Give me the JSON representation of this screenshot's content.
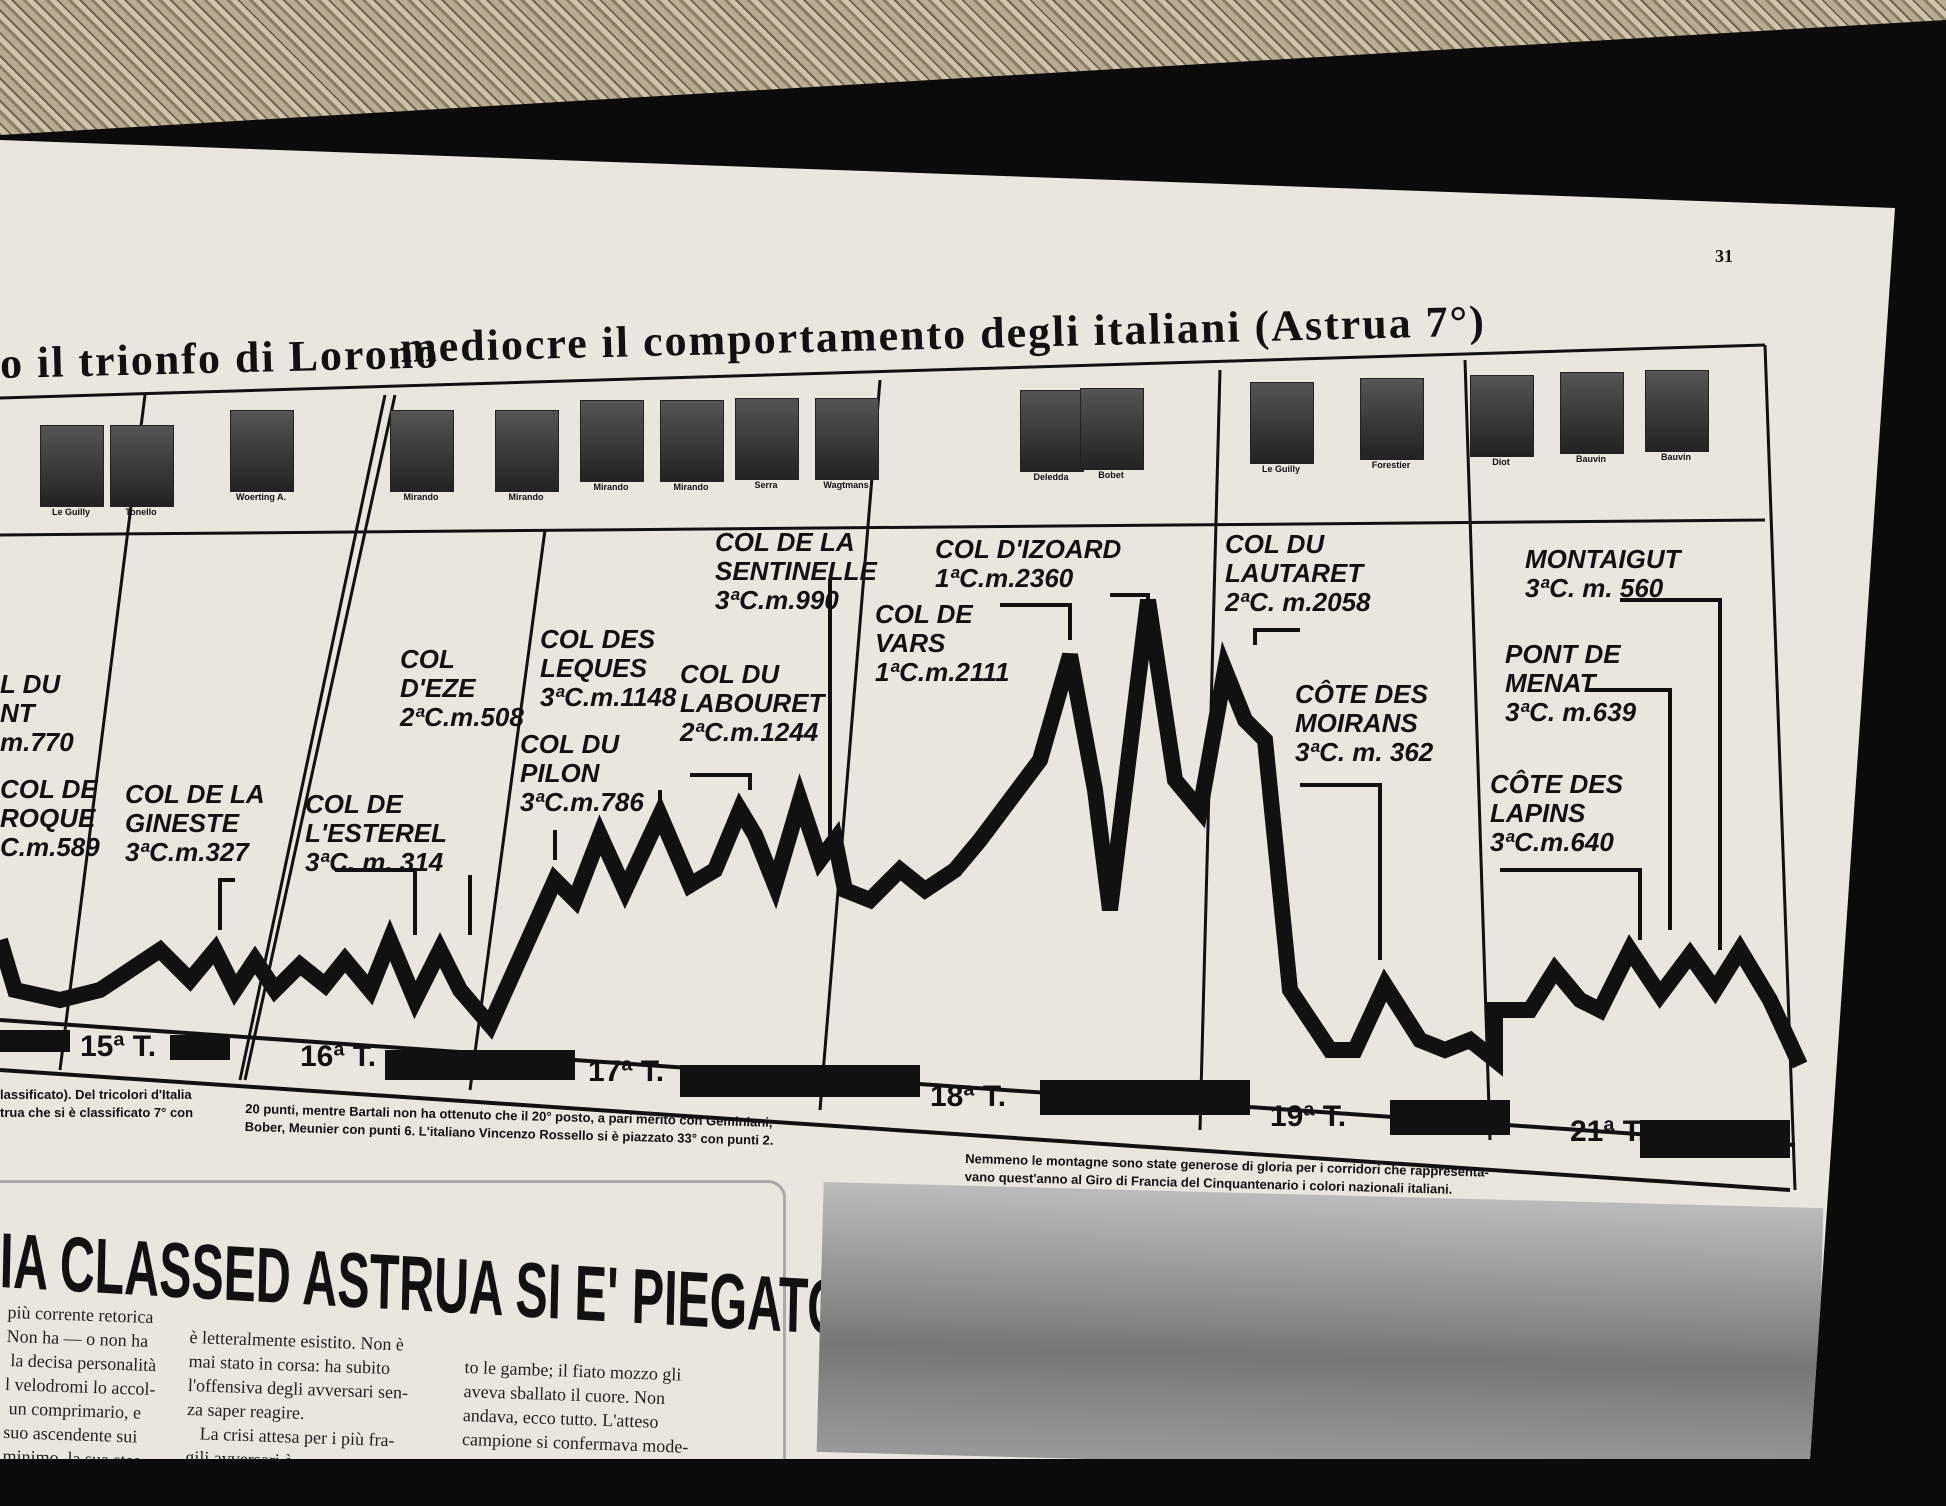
{
  "page_number": "31",
  "headline": {
    "left": "o il trionfo di Lorono",
    "right": "mediocre il comportamento degli italiani (Astrua 7°)"
  },
  "photo_captions": [
    {
      "name": "Le Guilly"
    },
    {
      "name": "Tonello"
    },
    {
      "name": "Woerting A."
    },
    {
      "name": "Mirando"
    },
    {
      "name": "Mirando"
    },
    {
      "name": "Mirando"
    },
    {
      "name": "Mirando"
    },
    {
      "name": "Serra"
    },
    {
      "name": "Wagtmans"
    },
    {
      "name": "Deledda"
    },
    {
      "name": "Bobet"
    },
    {
      "name": "Le Guilly"
    },
    {
      "name": "Forestier"
    },
    {
      "name": "Diot"
    },
    {
      "name": "Bauvin"
    },
    {
      "name": "Bauvin"
    }
  ],
  "climbs": [
    {
      "name": "L DU\nNT",
      "info": "m.770"
    },
    {
      "name": "COL DE\nROQUE",
      "info": "C.m.589"
    },
    {
      "name": "COL DE LA\nGINESTE",
      "info": "3ªC.m.327"
    },
    {
      "name": "COL DE\nL'ESTEREL",
      "info": "3ªC. m. 314"
    },
    {
      "name": "COL\nD'EZE",
      "info": "2ªC.m.508"
    },
    {
      "name": "COL DU\nPILON",
      "info": "3ªC.m.786"
    },
    {
      "name": "COL DES\nLEQUES",
      "info": "3ªC.m.1148"
    },
    {
      "name": "COL DU\nLABOURET",
      "info": "2ªC.m.1244"
    },
    {
      "name": "COL DE LA\nSENTINELLE",
      "info": "3ªC.m.990"
    },
    {
      "name": "COL DE\nVARS",
      "info": "1ªC.m.2111"
    },
    {
      "name": "COL D'IZOARD",
      "info": "1ªC.m.2360"
    },
    {
      "name": "COL DU\nLAUTARET",
      "info": "2ªC. m.2058"
    },
    {
      "name": "CÔTE DES\nMOIRANS",
      "info": "3ªC. m. 362"
    },
    {
      "name": "MONTAIGUT",
      "info": "3ªC. m. 560"
    },
    {
      "name": "PONT DE\nMENAT",
      "info": "3ªC. m.639"
    },
    {
      "name": "CÔTE DES\nLAPINS",
      "info": "3ªC.m.640"
    }
  ],
  "stages": [
    "15ª T.",
    "16ª T.",
    "17ª T.",
    "18ª T.",
    "19ª T.",
    "21ª T."
  ],
  "captions": {
    "left": [
      "lassificato). Del tricolori d'Italia",
      "trua che si è classificato 7° con"
    ],
    "middle": [
      "20 punti, mentre Bartali non ha ottenuto che il 20° posto, a pari merito con Geminiani,",
      "Bober, Meunier con punti 6. L'italiano Vincenzo Rossello si è piazzato 33° con punti 2."
    ],
    "right": [
      "Nemmeno le montagne sono state generose di gloria per i corridori che rappresenta-",
      "vano quest'anno al Giro di Francia del Cinquantenario i colori nazionali italiani."
    ]
  },
  "article": {
    "headline": "IA CLASSED ASTRUA SI E' PIEGATO",
    "col1": "più corrente retorica\nNon ha — o non ha\n la decisa personalità\nl velodromi lo accol-\n un comprimario, e\nsuo ascendente sui\nminimo, la sua stes-",
    "col2": "è letteralmente esistito. Non è\nmai stato in corsa: ha subito\nl'offensiva degli avversari sen-\nza saper reagire.\n   La crisi attesa per i più fra-\ngili avversari è ...",
    "col3": "to le gambe; il fiato mozzo gli\naveva sballato il cuore. Non\nandava, ecco tutto. L'atteso\ncampione si confermava mode-\nsto ..."
  }
}
